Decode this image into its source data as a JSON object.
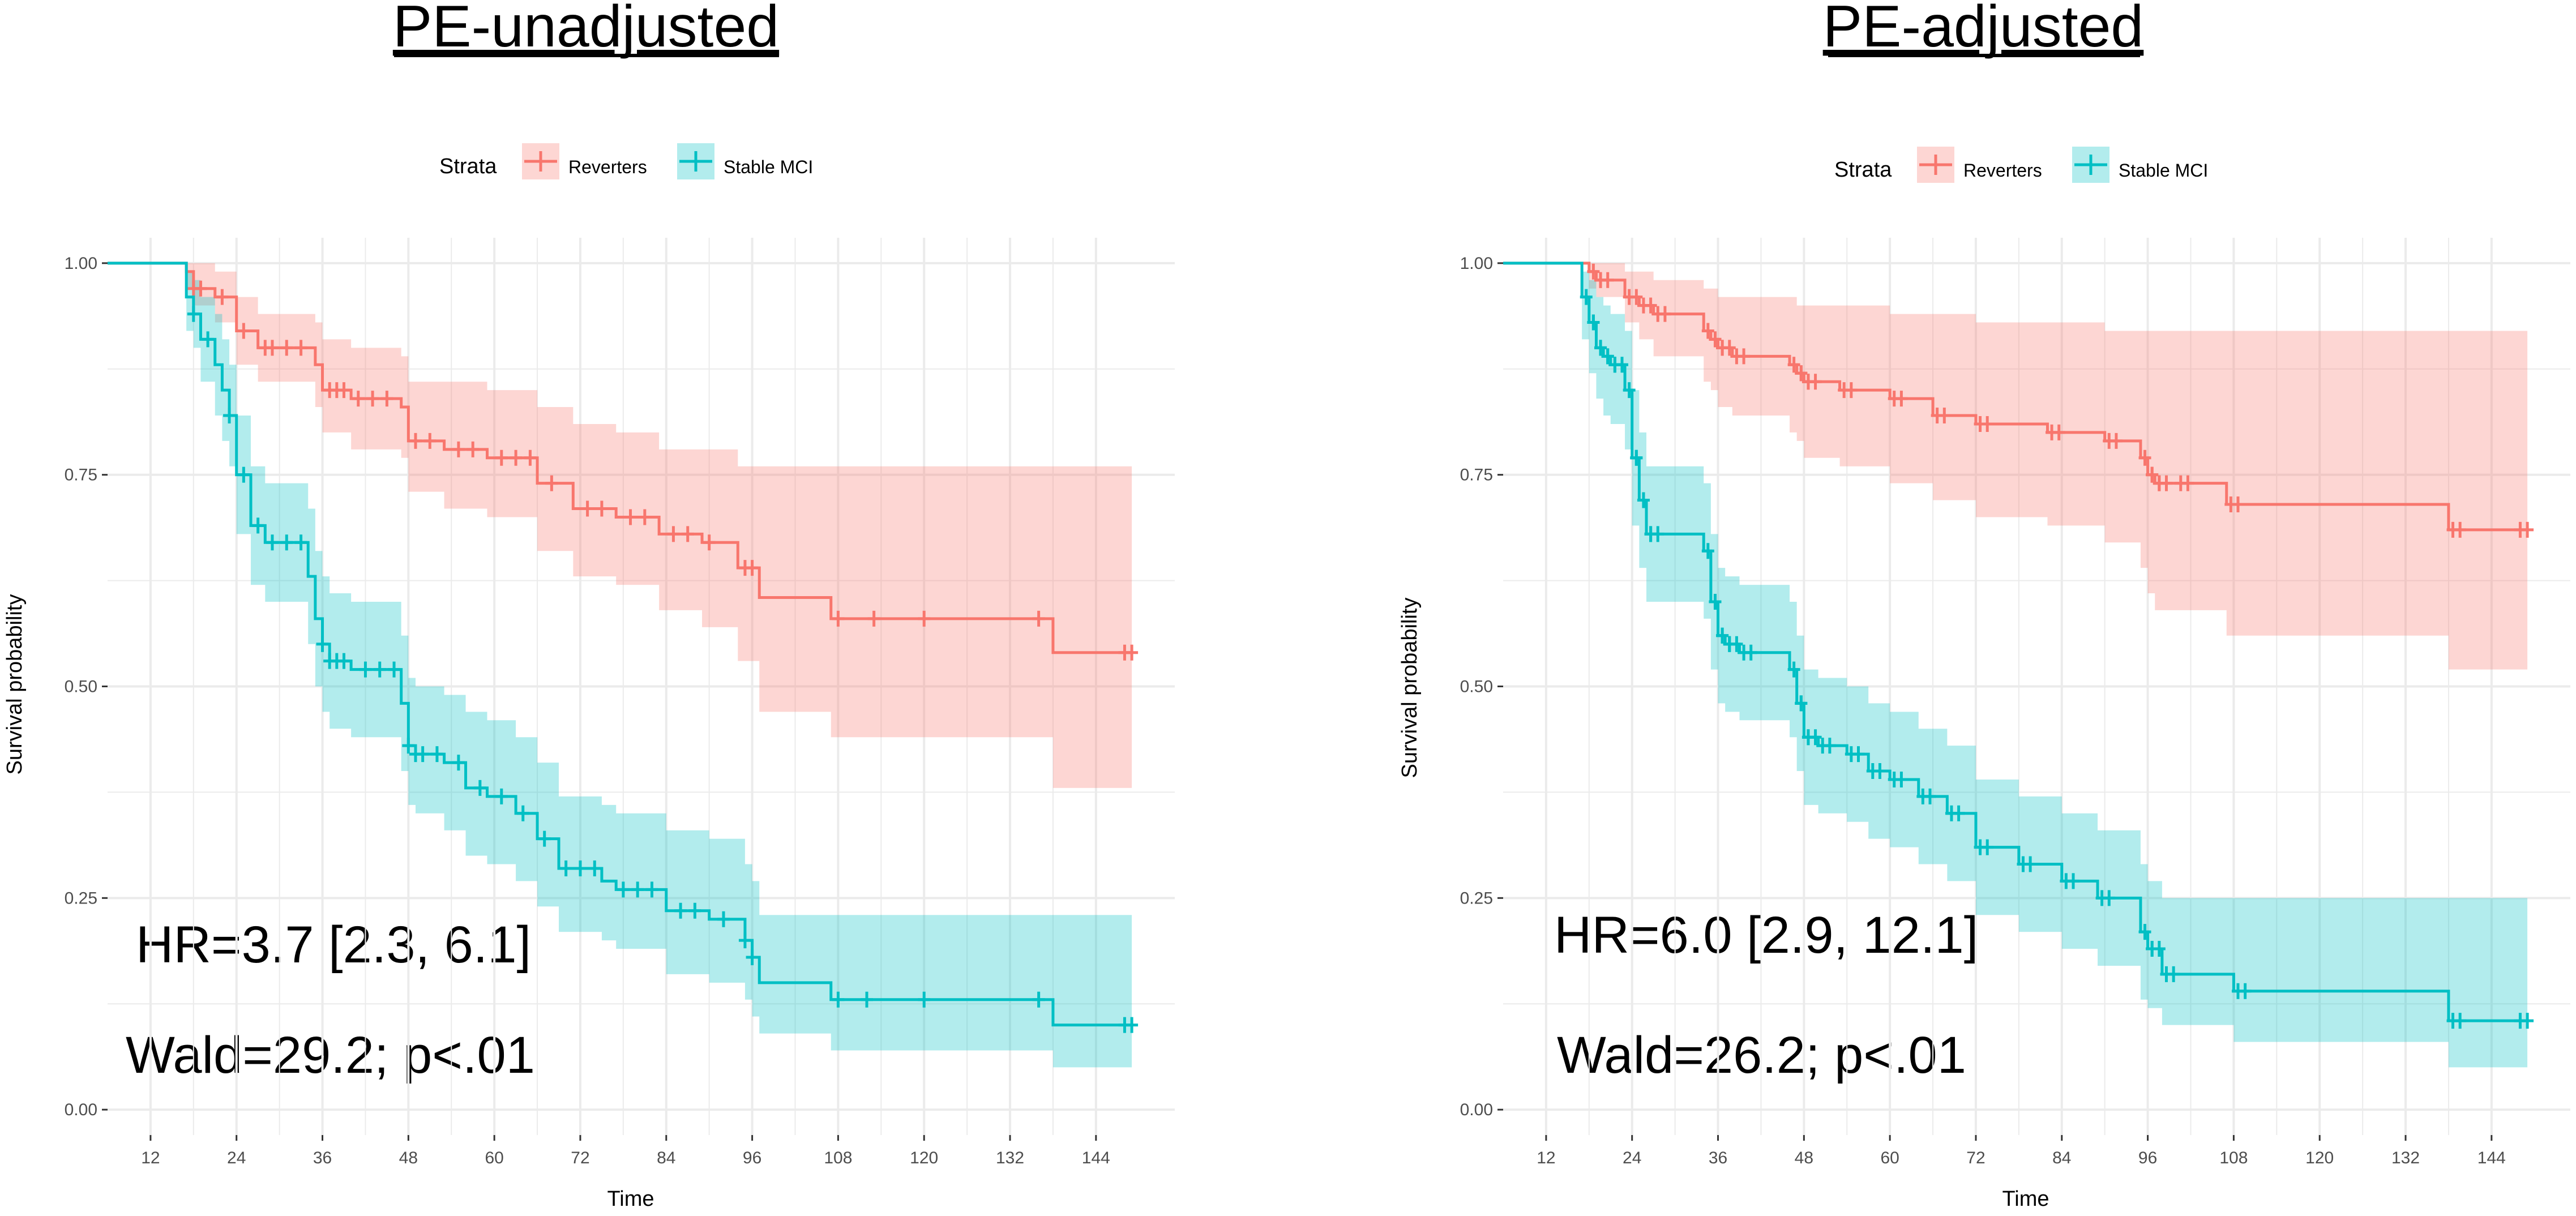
{
  "colors": {
    "reverters": "#F8766D",
    "stable": "#00BFC4",
    "grid": "#ebebeb"
  },
  "chart_data": [
    {
      "type": "line",
      "title": "PE-unadjusted",
      "xlabel": "Time",
      "ylabel": "Survival probability",
      "xlim": [
        6,
        155
      ],
      "ylim": [
        -0.03,
        1.03
      ],
      "xticks": [
        12,
        24,
        36,
        48,
        60,
        72,
        84,
        96,
        108,
        120,
        132,
        144
      ],
      "yticks": [
        0.0,
        0.25,
        0.5,
        0.75,
        1.0
      ],
      "ytick_labels": [
        "0.00",
        "0.25",
        "0.50",
        "0.75",
        "1.00"
      ],
      "legend": {
        "title": "Strata",
        "position": "top",
        "entries": [
          "Reverters",
          "Stable MCI"
        ]
      },
      "annotations": [
        "HR=3.7 [2.3, 6.1]",
        "Wald=29.2; p<.01"
      ],
      "series": [
        {
          "name": "Reverters",
          "x": [
            6,
            17,
            18,
            21,
            24,
            27,
            35,
            36,
            40,
            47,
            48,
            53,
            59,
            66,
            71,
            77,
            83,
            89,
            94,
            97,
            107,
            138,
            149
          ],
          "y": [
            1.0,
            0.99,
            0.97,
            0.96,
            0.92,
            0.9,
            0.88,
            0.85,
            0.84,
            0.83,
            0.79,
            0.78,
            0.77,
            0.74,
            0.71,
            0.7,
            0.68,
            0.67,
            0.64,
            0.605,
            0.58,
            0.54,
            0.54
          ],
          "upper": [
            1.0,
            1.0,
            1.0,
            0.99,
            0.96,
            0.94,
            0.93,
            0.91,
            0.9,
            0.89,
            0.86,
            0.86,
            0.85,
            0.83,
            0.81,
            0.8,
            0.78,
            0.78,
            0.76,
            0.76,
            0.76,
            0.76,
            0.76
          ],
          "lower": [
            1.0,
            0.97,
            0.95,
            0.93,
            0.88,
            0.86,
            0.83,
            0.8,
            0.78,
            0.77,
            0.73,
            0.71,
            0.7,
            0.66,
            0.63,
            0.62,
            0.59,
            0.57,
            0.53,
            0.47,
            0.44,
            0.38,
            0.38
          ],
          "censor_x": [
            18,
            19,
            22,
            25,
            28,
            29,
            31,
            33,
            37,
            38,
            39,
            41,
            43,
            45,
            49,
            51,
            55,
            57,
            61,
            63,
            65,
            68,
            73,
            75,
            79,
            81,
            85,
            87,
            90,
            95,
            96,
            108,
            113,
            120,
            136,
            148,
            149
          ]
        },
        {
          "name": "Stable MCI",
          "x": [
            6,
            17,
            18,
            19,
            21,
            22,
            23,
            24,
            26,
            28,
            34,
            35,
            36,
            37,
            40,
            47,
            48,
            49,
            53,
            56,
            59,
            63,
            66,
            69,
            75,
            77,
            84,
            90,
            95,
            96,
            97,
            99,
            107,
            138,
            149
          ],
          "y": [
            1.0,
            0.96,
            0.94,
            0.91,
            0.88,
            0.85,
            0.82,
            0.75,
            0.69,
            0.67,
            0.63,
            0.58,
            0.55,
            0.53,
            0.52,
            0.48,
            0.43,
            0.42,
            0.41,
            0.38,
            0.37,
            0.35,
            0.32,
            0.285,
            0.27,
            0.26,
            0.235,
            0.225,
            0.2,
            0.18,
            0.15,
            0.15,
            0.13,
            0.1,
            0.1
          ],
          "upper": [
            1.0,
            0.99,
            0.98,
            0.96,
            0.94,
            0.91,
            0.88,
            0.82,
            0.76,
            0.74,
            0.71,
            0.66,
            0.63,
            0.61,
            0.6,
            0.56,
            0.51,
            0.5,
            0.49,
            0.47,
            0.46,
            0.44,
            0.41,
            0.37,
            0.36,
            0.35,
            0.33,
            0.32,
            0.29,
            0.27,
            0.23,
            0.23,
            0.23,
            0.23,
            0.23
          ],
          "lower": [
            1.0,
            0.92,
            0.9,
            0.86,
            0.82,
            0.79,
            0.76,
            0.68,
            0.62,
            0.6,
            0.55,
            0.5,
            0.47,
            0.45,
            0.44,
            0.4,
            0.36,
            0.35,
            0.33,
            0.3,
            0.29,
            0.27,
            0.24,
            0.21,
            0.2,
            0.19,
            0.16,
            0.15,
            0.13,
            0.11,
            0.09,
            0.09,
            0.07,
            0.05,
            0.05
          ],
          "censor_x": [
            18,
            20,
            23,
            25,
            27,
            29,
            31,
            33,
            36,
            37,
            38,
            39,
            42,
            44,
            46,
            48,
            49,
            50,
            52,
            55,
            58,
            61,
            64,
            67,
            70,
            72,
            74,
            78,
            80,
            82,
            86,
            88,
            92,
            95,
            96,
            108,
            112,
            120,
            136,
            148,
            149
          ]
        }
      ]
    },
    {
      "type": "line",
      "title": "PE-adjusted",
      "xlabel": "Time",
      "ylabel": "Survival probability",
      "xlim": [
        6,
        155
      ],
      "ylim": [
        -0.03,
        1.03
      ],
      "xticks": [
        12,
        24,
        36,
        48,
        60,
        72,
        84,
        96,
        108,
        120,
        132,
        144
      ],
      "yticks": [
        0.0,
        0.25,
        0.5,
        0.75,
        1.0
      ],
      "ytick_labels": [
        "0.00",
        "0.25",
        "0.50",
        "0.75",
        "1.00"
      ],
      "legend": {
        "title": "Strata",
        "position": "top",
        "entries": [
          "Reverters",
          "Stable MCI"
        ]
      },
      "annotations": [
        "HR=6.0 [2.9, 12.1]",
        "Wald=26.2; p<.01"
      ],
      "series": [
        {
          "name": "Reverters",
          "x": [
            6,
            18,
            19,
            23,
            25,
            27,
            34,
            35,
            36,
            38,
            46,
            47,
            48,
            53,
            60,
            66,
            72,
            82,
            90,
            95,
            96,
            97,
            100,
            107,
            138,
            149
          ],
          "y": [
            1.0,
            0.99,
            0.98,
            0.96,
            0.95,
            0.94,
            0.92,
            0.91,
            0.9,
            0.89,
            0.88,
            0.87,
            0.86,
            0.85,
            0.84,
            0.82,
            0.81,
            0.8,
            0.79,
            0.77,
            0.75,
            0.74,
            0.74,
            0.715,
            0.685,
            0.685
          ],
          "upper": [
            1.0,
            1.0,
            1.0,
            0.99,
            0.99,
            0.98,
            0.97,
            0.97,
            0.96,
            0.96,
            0.96,
            0.95,
            0.95,
            0.95,
            0.94,
            0.94,
            0.93,
            0.93,
            0.92,
            0.92,
            0.92,
            0.92,
            0.92,
            0.92,
            0.92,
            0.92
          ],
          "lower": [
            1.0,
            0.97,
            0.96,
            0.93,
            0.91,
            0.89,
            0.86,
            0.85,
            0.83,
            0.82,
            0.8,
            0.79,
            0.77,
            0.76,
            0.74,
            0.72,
            0.7,
            0.69,
            0.67,
            0.64,
            0.61,
            0.59,
            0.59,
            0.56,
            0.52,
            0.52
          ]
        },
        {
          "name": "Stable MCI",
          "x": [
            6,
            17,
            18,
            19,
            20,
            21,
            23,
            24,
            25,
            26,
            34,
            35,
            36,
            37,
            39,
            46,
            47,
            48,
            50,
            54,
            57,
            60,
            64,
            68,
            72,
            78,
            84,
            89,
            95,
            96,
            98,
            108,
            138,
            149
          ],
          "y": [
            1.0,
            0.96,
            0.93,
            0.9,
            0.89,
            0.88,
            0.85,
            0.77,
            0.72,
            0.68,
            0.66,
            0.6,
            0.56,
            0.55,
            0.54,
            0.52,
            0.48,
            0.44,
            0.43,
            0.42,
            0.4,
            0.39,
            0.37,
            0.35,
            0.31,
            0.29,
            0.27,
            0.25,
            0.21,
            0.19,
            0.16,
            0.14,
            0.105,
            0.105
          ],
          "upper": [
            1.0,
            0.99,
            0.98,
            0.96,
            0.95,
            0.94,
            0.92,
            0.85,
            0.8,
            0.76,
            0.74,
            0.68,
            0.64,
            0.63,
            0.62,
            0.6,
            0.56,
            0.52,
            0.51,
            0.5,
            0.48,
            0.47,
            0.45,
            0.43,
            0.39,
            0.37,
            0.35,
            0.33,
            0.29,
            0.27,
            0.25,
            0.25,
            0.25,
            0.25
          ],
          "lower": [
            1.0,
            0.91,
            0.87,
            0.84,
            0.82,
            0.81,
            0.78,
            0.69,
            0.64,
            0.6,
            0.58,
            0.52,
            0.48,
            0.47,
            0.46,
            0.44,
            0.4,
            0.36,
            0.35,
            0.34,
            0.32,
            0.31,
            0.29,
            0.27,
            0.23,
            0.21,
            0.19,
            0.17,
            0.13,
            0.12,
            0.1,
            0.08,
            0.05,
            0.05
          ]
        }
      ]
    }
  ]
}
